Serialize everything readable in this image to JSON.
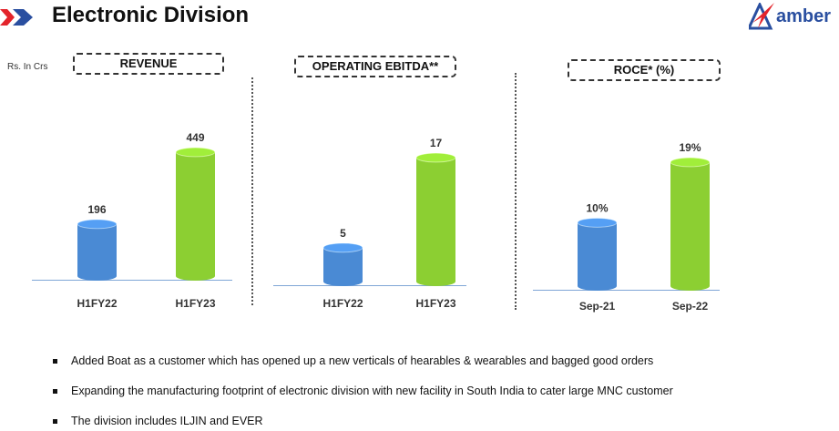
{
  "header": {
    "title": "Electronic Division",
    "logo_text": "amber",
    "unit": "Rs. In Crs"
  },
  "colors": {
    "blue": "#4a8ad4",
    "green": "#8ccf32",
    "accent_red": "#e3242b",
    "accent_blue": "#2a4fa0"
  },
  "chart_data": [
    {
      "type": "bar",
      "title": "REVENUE",
      "categories": [
        "H1FY22",
        "H1FY23"
      ],
      "values": [
        196,
        449
      ],
      "value_labels": [
        "196",
        "449"
      ],
      "ylabel": "Rs. In Crs"
    },
    {
      "type": "bar",
      "title": "OPERATING EBITDA**",
      "categories": [
        "H1FY22",
        "H1FY23"
      ],
      "values": [
        5,
        17
      ],
      "value_labels": [
        "5",
        "17"
      ]
    },
    {
      "type": "bar",
      "title": "ROCE* (%)",
      "categories": [
        "Sep-21",
        "Sep-22"
      ],
      "values": [
        10,
        19
      ],
      "value_labels": [
        "10%",
        "19%"
      ]
    }
  ],
  "bullets": [
    "Added Boat as a customer which has opened up a new verticals of hearables & wearables and bagged good orders",
    "Expanding the manufacturing footprint of electronic division with new facility in South India to cater large MNC customer",
    "The division includes ILJIN and EVER"
  ]
}
